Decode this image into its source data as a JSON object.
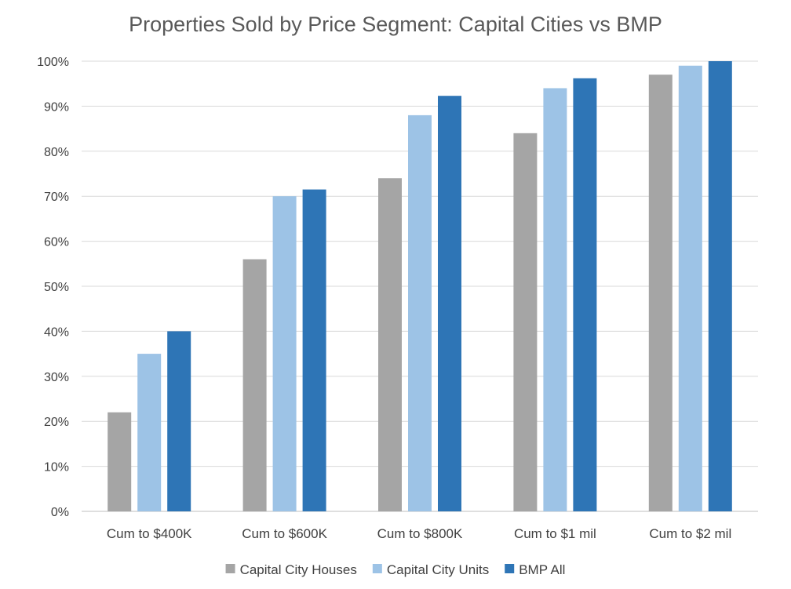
{
  "chart_data": {
    "type": "bar",
    "title": "Properties Sold by Price Segment: Capital Cities vs BMP",
    "xlabel": "",
    "ylabel": "",
    "categories": [
      "Cum to $400K",
      "Cum to $600K",
      "Cum to $800K",
      "Cum to $1 mil",
      "Cum to $2 mil"
    ],
    "series": [
      {
        "name": "Capital City Houses",
        "color": "#A5A5A5",
        "values": [
          22,
          56,
          74,
          84,
          97
        ]
      },
      {
        "name": "Capital City Units",
        "color": "#9DC3E6",
        "values": [
          35,
          70,
          88,
          94,
          99
        ]
      },
      {
        "name": "BMP All",
        "color": "#2E75B6",
        "values": [
          40,
          71.5,
          92.3,
          96.2,
          100
        ]
      }
    ],
    "ylim": [
      0,
      100
    ],
    "yticks": [
      0,
      10,
      20,
      30,
      40,
      50,
      60,
      70,
      80,
      90,
      100
    ],
    "ytick_format": "percent",
    "grid": true,
    "legend_position": "bottom"
  }
}
